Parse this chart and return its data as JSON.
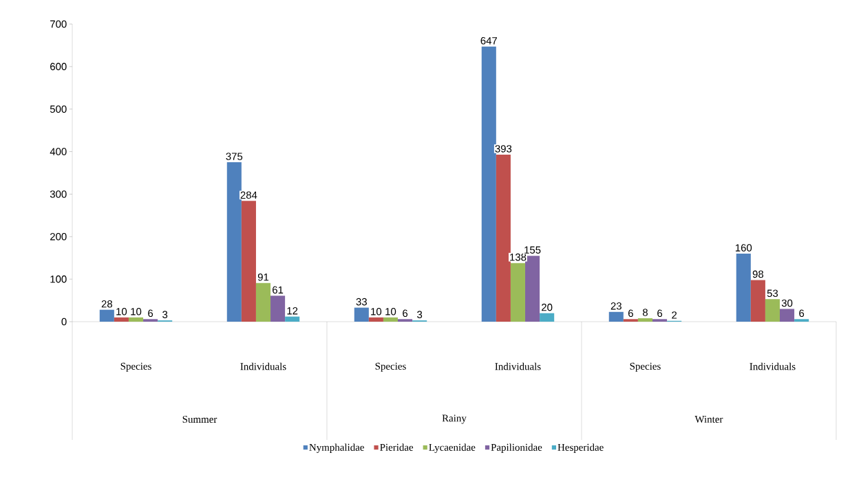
{
  "chart_data": {
    "type": "bar",
    "categories": [
      "Species",
      "Individuals",
      "Species",
      "Individuals",
      "Species",
      "Individuals"
    ],
    "annotations": [
      "Summer",
      "Rainy",
      "Winter"
    ],
    "series": [
      {
        "name": "Nymphalidae",
        "color": "#4f81bd",
        "values": [
          28,
          375,
          33,
          647,
          23,
          160
        ]
      },
      {
        "name": "Pieridae",
        "color": "#c0504d",
        "values": [
          10,
          284,
          10,
          393,
          6,
          98
        ]
      },
      {
        "name": "Lycaenidae",
        "color": "#9bbb59",
        "values": [
          10,
          91,
          10,
          138,
          8,
          53
        ]
      },
      {
        "name": "Papilionidae",
        "color": "#8064a2",
        "values": [
          6,
          61,
          6,
          155,
          6,
          30
        ]
      },
      {
        "name": "Hesperidae",
        "color": "#4bacc6",
        "values": [
          3,
          12,
          3,
          20,
          2,
          6
        ]
      }
    ],
    "ylim": [
      0,
      700
    ],
    "yticks": [
      0,
      100,
      200,
      300,
      400,
      500,
      600,
      700
    ],
    "data_labels": true,
    "legend": "bottom",
    "grid": false
  }
}
